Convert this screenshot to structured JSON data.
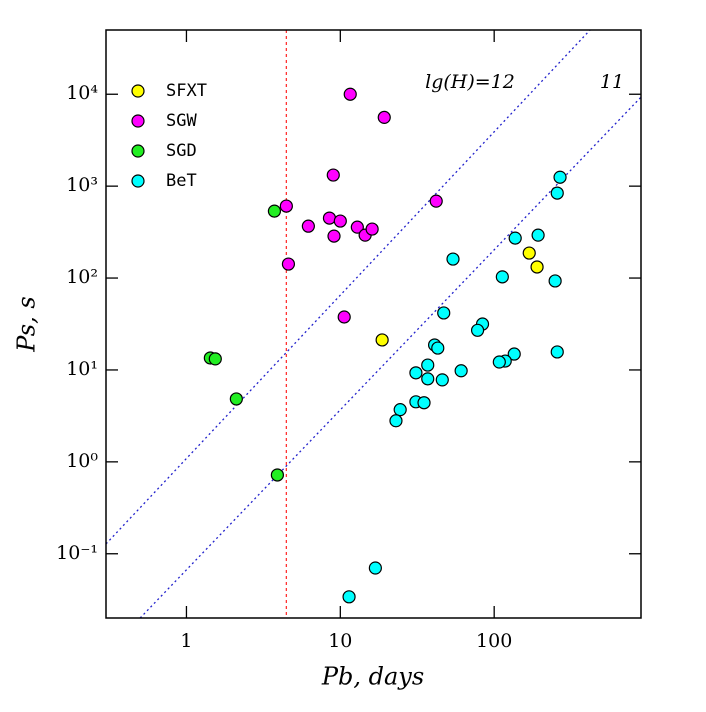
{
  "chart_data": {
    "type": "scatter",
    "log_x": true,
    "log_y": true,
    "xlabel": "Pb, days",
    "ylabel": "Ps, s",
    "xlim": [
      0.3,
      900
    ],
    "ylim": [
      0.02,
      50000
    ],
    "xticks": [
      1,
      10,
      100
    ],
    "yticks": [
      {
        "value": 0.1,
        "label": "10⁻¹"
      },
      {
        "value": 1,
        "label": "10⁰"
      },
      {
        "value": 10,
        "label": "10¹"
      },
      {
        "value": 100,
        "label": "10²"
      },
      {
        "value": 1000,
        "label": "10³"
      },
      {
        "value": 10000,
        "label": "10⁴"
      }
    ],
    "legend": "upper left",
    "series": [
      {
        "name": "SFXT",
        "color": "#ffff00",
        "x": [
          18.7,
          169,
          190
        ],
        "values": [
          21.2,
          187,
          132
        ]
      },
      {
        "name": "SGW",
        "color": "#ff00ff",
        "x": [
          11.6,
          19.3,
          9.0,
          42,
          4.46,
          6.2,
          8.5,
          10,
          12.9,
          14.5,
          16.1,
          9.1,
          4.6,
          10.6
        ],
        "values": [
          10000,
          5600,
          1320,
          687,
          607,
          367,
          449,
          417,
          358,
          293,
          341,
          286,
          142,
          37.7
        ]
      },
      {
        "name": "SGD",
        "color": "#22ee22",
        "x": [
          3.73,
          1.43,
          1.54,
          2.11,
          3.9
        ],
        "values": [
          535,
          13.5,
          13.2,
          4.84,
          0.72
        ]
      },
      {
        "name": "BeT",
        "color": "#00ffff",
        "x": [
          268,
          257,
          137,
          193,
          54,
          113,
          249,
          47,
          84,
          78,
          41,
          43,
          257,
          135,
          118,
          108,
          37,
          61,
          31,
          37,
          46,
          31,
          35,
          24.5,
          23,
          16.9,
          11.4
        ],
        "values": [
          1250,
          840,
          272,
          293,
          161,
          103,
          93,
          41.7,
          31.6,
          27,
          18.7,
          17.3,
          15.7,
          14.9,
          12.5,
          12.2,
          11.3,
          9.8,
          9.3,
          8.0,
          7.8,
          4.5,
          4.4,
          3.7,
          2.8,
          0.07,
          0.034
        ]
      }
    ],
    "lines": [
      {
        "label": "lg(H)=12",
        "color": "#2222cc",
        "points": [
          [
            0.3,
            0.128
          ],
          [
            420,
            50000
          ]
        ]
      },
      {
        "label": "11",
        "color": "#2222cc",
        "points": [
          [
            0.5,
            0.02
          ],
          [
            900,
            9300
          ]
        ]
      }
    ],
    "vline": {
      "x": 4.46,
      "color": "#ff3333"
    }
  }
}
